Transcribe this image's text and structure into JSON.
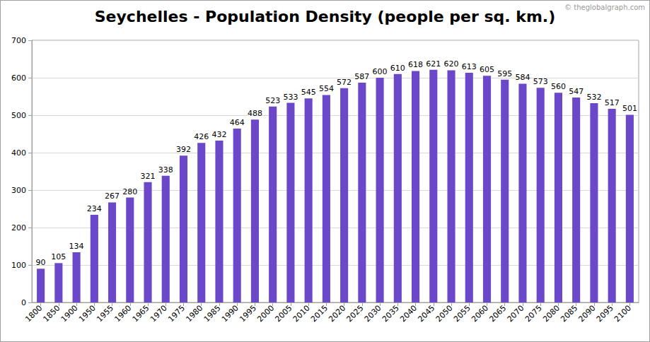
{
  "chart_data": {
    "type": "bar",
    "title": "Seychelles - Population Density (people per sq. km.)",
    "annotations": [
      "© theglobalgraph.com"
    ],
    "categories": [
      "1800",
      "1850",
      "1900",
      "1950",
      "1955",
      "1960",
      "1965",
      "1970",
      "1975",
      "1980",
      "1985",
      "1990",
      "1995",
      "2000",
      "2005",
      "2010",
      "2015",
      "2020",
      "2025",
      "2030",
      "2035",
      "2040",
      "2045",
      "2050",
      "2055",
      "2060",
      "2065",
      "2070",
      "2075",
      "2080",
      "2085",
      "2090",
      "2095",
      "2100"
    ],
    "values": [
      90,
      105,
      134,
      234,
      267,
      280,
      321,
      338,
      392,
      426,
      432,
      464,
      488,
      523,
      533,
      545,
      554,
      572,
      587,
      600,
      610,
      618,
      621,
      620,
      613,
      605,
      595,
      584,
      573,
      560,
      547,
      532,
      517,
      501
    ],
    "color": "#6a48c9",
    "ylim": [
      0,
      700
    ],
    "yticks": [
      0,
      100,
      200,
      300,
      400,
      500,
      600,
      700
    ],
    "grid": true,
    "data_labels": true
  }
}
